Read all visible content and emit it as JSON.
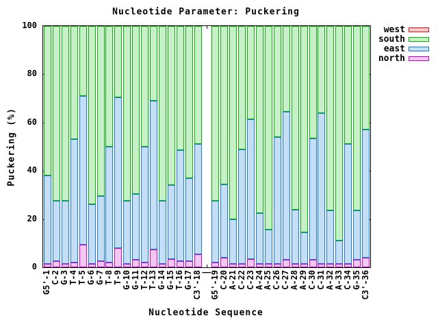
{
  "title": "Nucleotide Parameter: Puckering",
  "xlabel": "Nucleotide Sequence",
  "ylabel": "Puckering (%)",
  "legend": {
    "position": "top-right-outside",
    "entries": [
      {
        "label": "west",
        "border": "#e01414",
        "fill": "#f9c8c8"
      },
      {
        "label": "south",
        "border": "#00b400",
        "fill": "#c8f0c8"
      },
      {
        "label": "east",
        "border": "#1878d8",
        "fill": "#c4def6"
      },
      {
        "label": "north",
        "border": "#cd00cd",
        "fill": "#f2c8f0"
      }
    ]
  },
  "chart_data": {
    "type": "bar",
    "stacked": true,
    "title": "Nucleotide Parameter: Puckering",
    "xlabel": "Nucleotide Sequence",
    "ylabel": "Puckering (%)",
    "ylim": [
      0,
      100
    ],
    "yticks": [
      0,
      20,
      40,
      60,
      80,
      100
    ],
    "grid": false,
    "gap_index": 18,
    "categories": [
      "G5'-1",
      "C-2",
      "G-3",
      "T-4",
      "T-5",
      "G-6",
      "G-7",
      "T-8",
      "T-9",
      "G-10",
      "G-11",
      "T-12",
      "T-13",
      "G-14",
      "G-15",
      "T-16",
      "G-17",
      "C3'-18",
      "|",
      "G5'-19",
      "C-20",
      "A-21",
      "C-22",
      "C-23",
      "A-24",
      "A-25",
      "C-26",
      "C-27",
      "A-28",
      "A-29",
      "C-30",
      "C-31",
      "A-32",
      "A-33",
      "C-34",
      "G-35",
      "C3'-36"
    ],
    "series": [
      {
        "name": "north",
        "values": [
          1.5,
          2.5,
          1.5,
          2,
          9.5,
          1.5,
          2.5,
          2,
          8,
          1.5,
          3,
          2,
          7.5,
          1.5,
          3.5,
          2.5,
          2.5,
          5.5,
          null,
          2,
          4,
          1.5,
          1.5,
          3.5,
          1.5,
          1.5,
          1.5,
          3,
          1.5,
          1.5,
          3,
          1.5,
          1.5,
          1.5,
          1.5,
          3,
          4
        ]
      },
      {
        "name": "east",
        "values": [
          36.5,
          25,
          26,
          51,
          61.5,
          24.5,
          27,
          48,
          62.5,
          26,
          27.5,
          48,
          61.5,
          26,
          30.5,
          46,
          34.5,
          45.5,
          null,
          25.5,
          30.5,
          18.5,
          47.5,
          58,
          21,
          14,
          52.5,
          61.5,
          22.5,
          13,
          50.5,
          62.5,
          22,
          9.5,
          49.5,
          20.5,
          53
        ]
      },
      {
        "name": "south",
        "values": [
          62,
          72.5,
          72.5,
          47,
          29,
          74,
          70.5,
          50,
          29.5,
          72.5,
          69.5,
          50,
          31,
          72.5,
          66,
          51.5,
          63,
          49,
          null,
          72.5,
          65.5,
          80,
          51,
          38.5,
          77.5,
          84.5,
          46,
          35.5,
          76,
          85.5,
          46.5,
          36,
          76.5,
          89,
          49,
          76.5,
          43
        ]
      },
      {
        "name": "west",
        "values": [
          0,
          0,
          0,
          0,
          0,
          0,
          0,
          0,
          0,
          0,
          0,
          0,
          0,
          0,
          0,
          0,
          0,
          0,
          null,
          0,
          0,
          0,
          0,
          0,
          0,
          0,
          0,
          0,
          0,
          0,
          0,
          0,
          0,
          0,
          0,
          0,
          0
        ]
      }
    ]
  }
}
